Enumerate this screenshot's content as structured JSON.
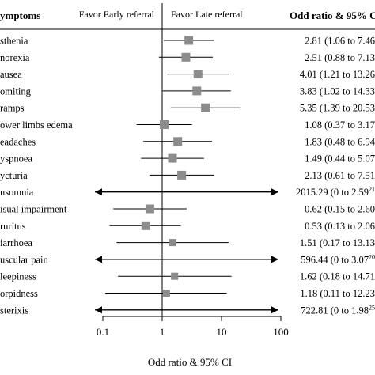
{
  "chart_data": {
    "type": "forest",
    "xscale": "log",
    "xlim": [
      0.1,
      100
    ],
    "xticks": [
      {
        "value": 0.1,
        "label": "0.1"
      },
      {
        "value": 1,
        "label": "1"
      },
      {
        "value": 10,
        "label": "10"
      },
      {
        "value": 100,
        "label": "100"
      }
    ],
    "xlabel": "Odd ratio & 95% CI",
    "column_header_left": "ymptoms",
    "column_header_right": "Odd ratio & 95% C",
    "favor_left": "Favor Early referral",
    "favor_right": "Favor Late referral",
    "reference_line": 1,
    "marker_color": "#8c8c8c",
    "rows": [
      {
        "label": "sthenia",
        "or": 2.81,
        "lo": 1.06,
        "hi": 7.46,
        "text": "2.81 (1.06 to 7.46",
        "arrows": false,
        "marker": "large"
      },
      {
        "label": "norexia",
        "or": 2.51,
        "lo": 0.88,
        "hi": 7.13,
        "text": "2.51 (0.88 to 7.13",
        "arrows": false,
        "marker": "large"
      },
      {
        "label": "ausea",
        "or": 4.01,
        "lo": 1.21,
        "hi": 13.26,
        "text": "4.01 (1.21 to 13.26",
        "arrows": false,
        "marker": "large"
      },
      {
        "label": "omiting",
        "or": 3.83,
        "lo": 1.02,
        "hi": 14.33,
        "text": "3.83 (1.02 to 14.33",
        "arrows": false,
        "marker": "large"
      },
      {
        "label": "ramps",
        "or": 5.35,
        "lo": 1.39,
        "hi": 20.53,
        "text": "5.35 (1.39 to 20.53",
        "arrows": false,
        "marker": "large"
      },
      {
        "label": "ower limbs edema",
        "or": 1.08,
        "lo": 0.37,
        "hi": 3.17,
        "text": "1.08 (0.37 to 3.17",
        "arrows": false,
        "marker": "large"
      },
      {
        "label": "eadaches",
        "or": 1.83,
        "lo": 0.48,
        "hi": 6.94,
        "text": "1.83 (0.48 to 6.94",
        "arrows": false,
        "marker": "large"
      },
      {
        "label": "yspnoea",
        "or": 1.49,
        "lo": 0.44,
        "hi": 5.07,
        "text": "1.49 (0.44 to 5.07",
        "arrows": false,
        "marker": "large"
      },
      {
        "label": "ycturia",
        "or": 2.13,
        "lo": 0.61,
        "hi": 7.51,
        "text": "2.13 (0.61 to 7.51",
        "arrows": false,
        "marker": "large"
      },
      {
        "label": "nsomnia",
        "or": null,
        "lo": null,
        "hi": null,
        "text": "2015.29 (0 to 2.59",
        "sup": "21",
        "arrows": true,
        "marker": "none"
      },
      {
        "label": "isual impairment",
        "or": 0.62,
        "lo": 0.15,
        "hi": 2.6,
        "text": "0.62 (0.15 to 2.60",
        "arrows": false,
        "marker": "large"
      },
      {
        "label": "ruritus",
        "or": 0.53,
        "lo": 0.13,
        "hi": 2.06,
        "text": "0.53 (0.13 to 2.06",
        "arrows": false,
        "marker": "large"
      },
      {
        "label": "iarrhoea",
        "or": 1.51,
        "lo": 0.17,
        "hi": 13.13,
        "text": "1.51 (0.17 to 13.13",
        "arrows": false,
        "marker": "small"
      },
      {
        "label": "uscular pain",
        "or": null,
        "lo": null,
        "hi": null,
        "text": "596.44 (0 to 3.07",
        "sup": "20",
        "arrows": true,
        "marker": "none"
      },
      {
        "label": "leepiness",
        "or": 1.62,
        "lo": 0.18,
        "hi": 14.71,
        "text": "1.62 (0.18 to 14.71",
        "arrows": false,
        "marker": "small"
      },
      {
        "label": "orpidness",
        "or": 1.18,
        "lo": 0.11,
        "hi": 12.23,
        "text": "1.18 (0.11 to 12.23",
        "arrows": false,
        "marker": "small"
      },
      {
        "label": "sterixis",
        "or": null,
        "lo": null,
        "hi": null,
        "text": "722.81 (0 to 1.98",
        "sup": "25",
        "arrows": true,
        "marker": "none"
      }
    ]
  }
}
